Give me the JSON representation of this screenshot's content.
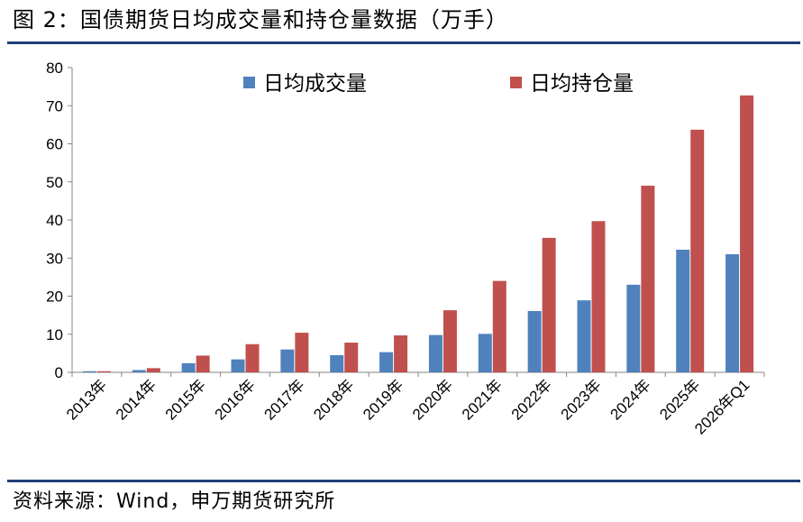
{
  "header": {
    "title": "图 2：国债期货日均成交量和持仓量数据（万手）"
  },
  "footer": {
    "source": "资料来源：Wind，申万期货研究所"
  },
  "colors": {
    "rule": "#1f3f77",
    "series_volume": "#4f81bd",
    "series_open_interest": "#c0504d"
  },
  "chart_data": {
    "type": "bar",
    "title": "",
    "xlabel": "",
    "ylabel": "",
    "ylim": [
      0,
      80
    ],
    "yticks": [
      0,
      10,
      20,
      30,
      40,
      50,
      60,
      70,
      80
    ],
    "grid": false,
    "legend_position": "top-center",
    "categories": [
      "2013年",
      "2014年",
      "2015年",
      "2016年",
      "2017年",
      "2018年",
      "2019年",
      "2020年",
      "2021年",
      "2022年",
      "2023年",
      "2024年",
      "2025年",
      "2026年Q1"
    ],
    "series": [
      {
        "name": "日均成交量",
        "color": "#4f81bd",
        "values": [
          0.3,
          0.6,
          2.4,
          3.4,
          6.0,
          4.5,
          5.3,
          9.8,
          10.1,
          16.1,
          18.9,
          23.0,
          32.2,
          31.0
        ]
      },
      {
        "name": "日均持仓量",
        "color": "#c0504d",
        "values": [
          0.3,
          1.1,
          4.4,
          7.4,
          10.4,
          7.8,
          9.7,
          16.3,
          24.0,
          35.3,
          39.7,
          49.0,
          63.7,
          72.7
        ]
      }
    ]
  }
}
